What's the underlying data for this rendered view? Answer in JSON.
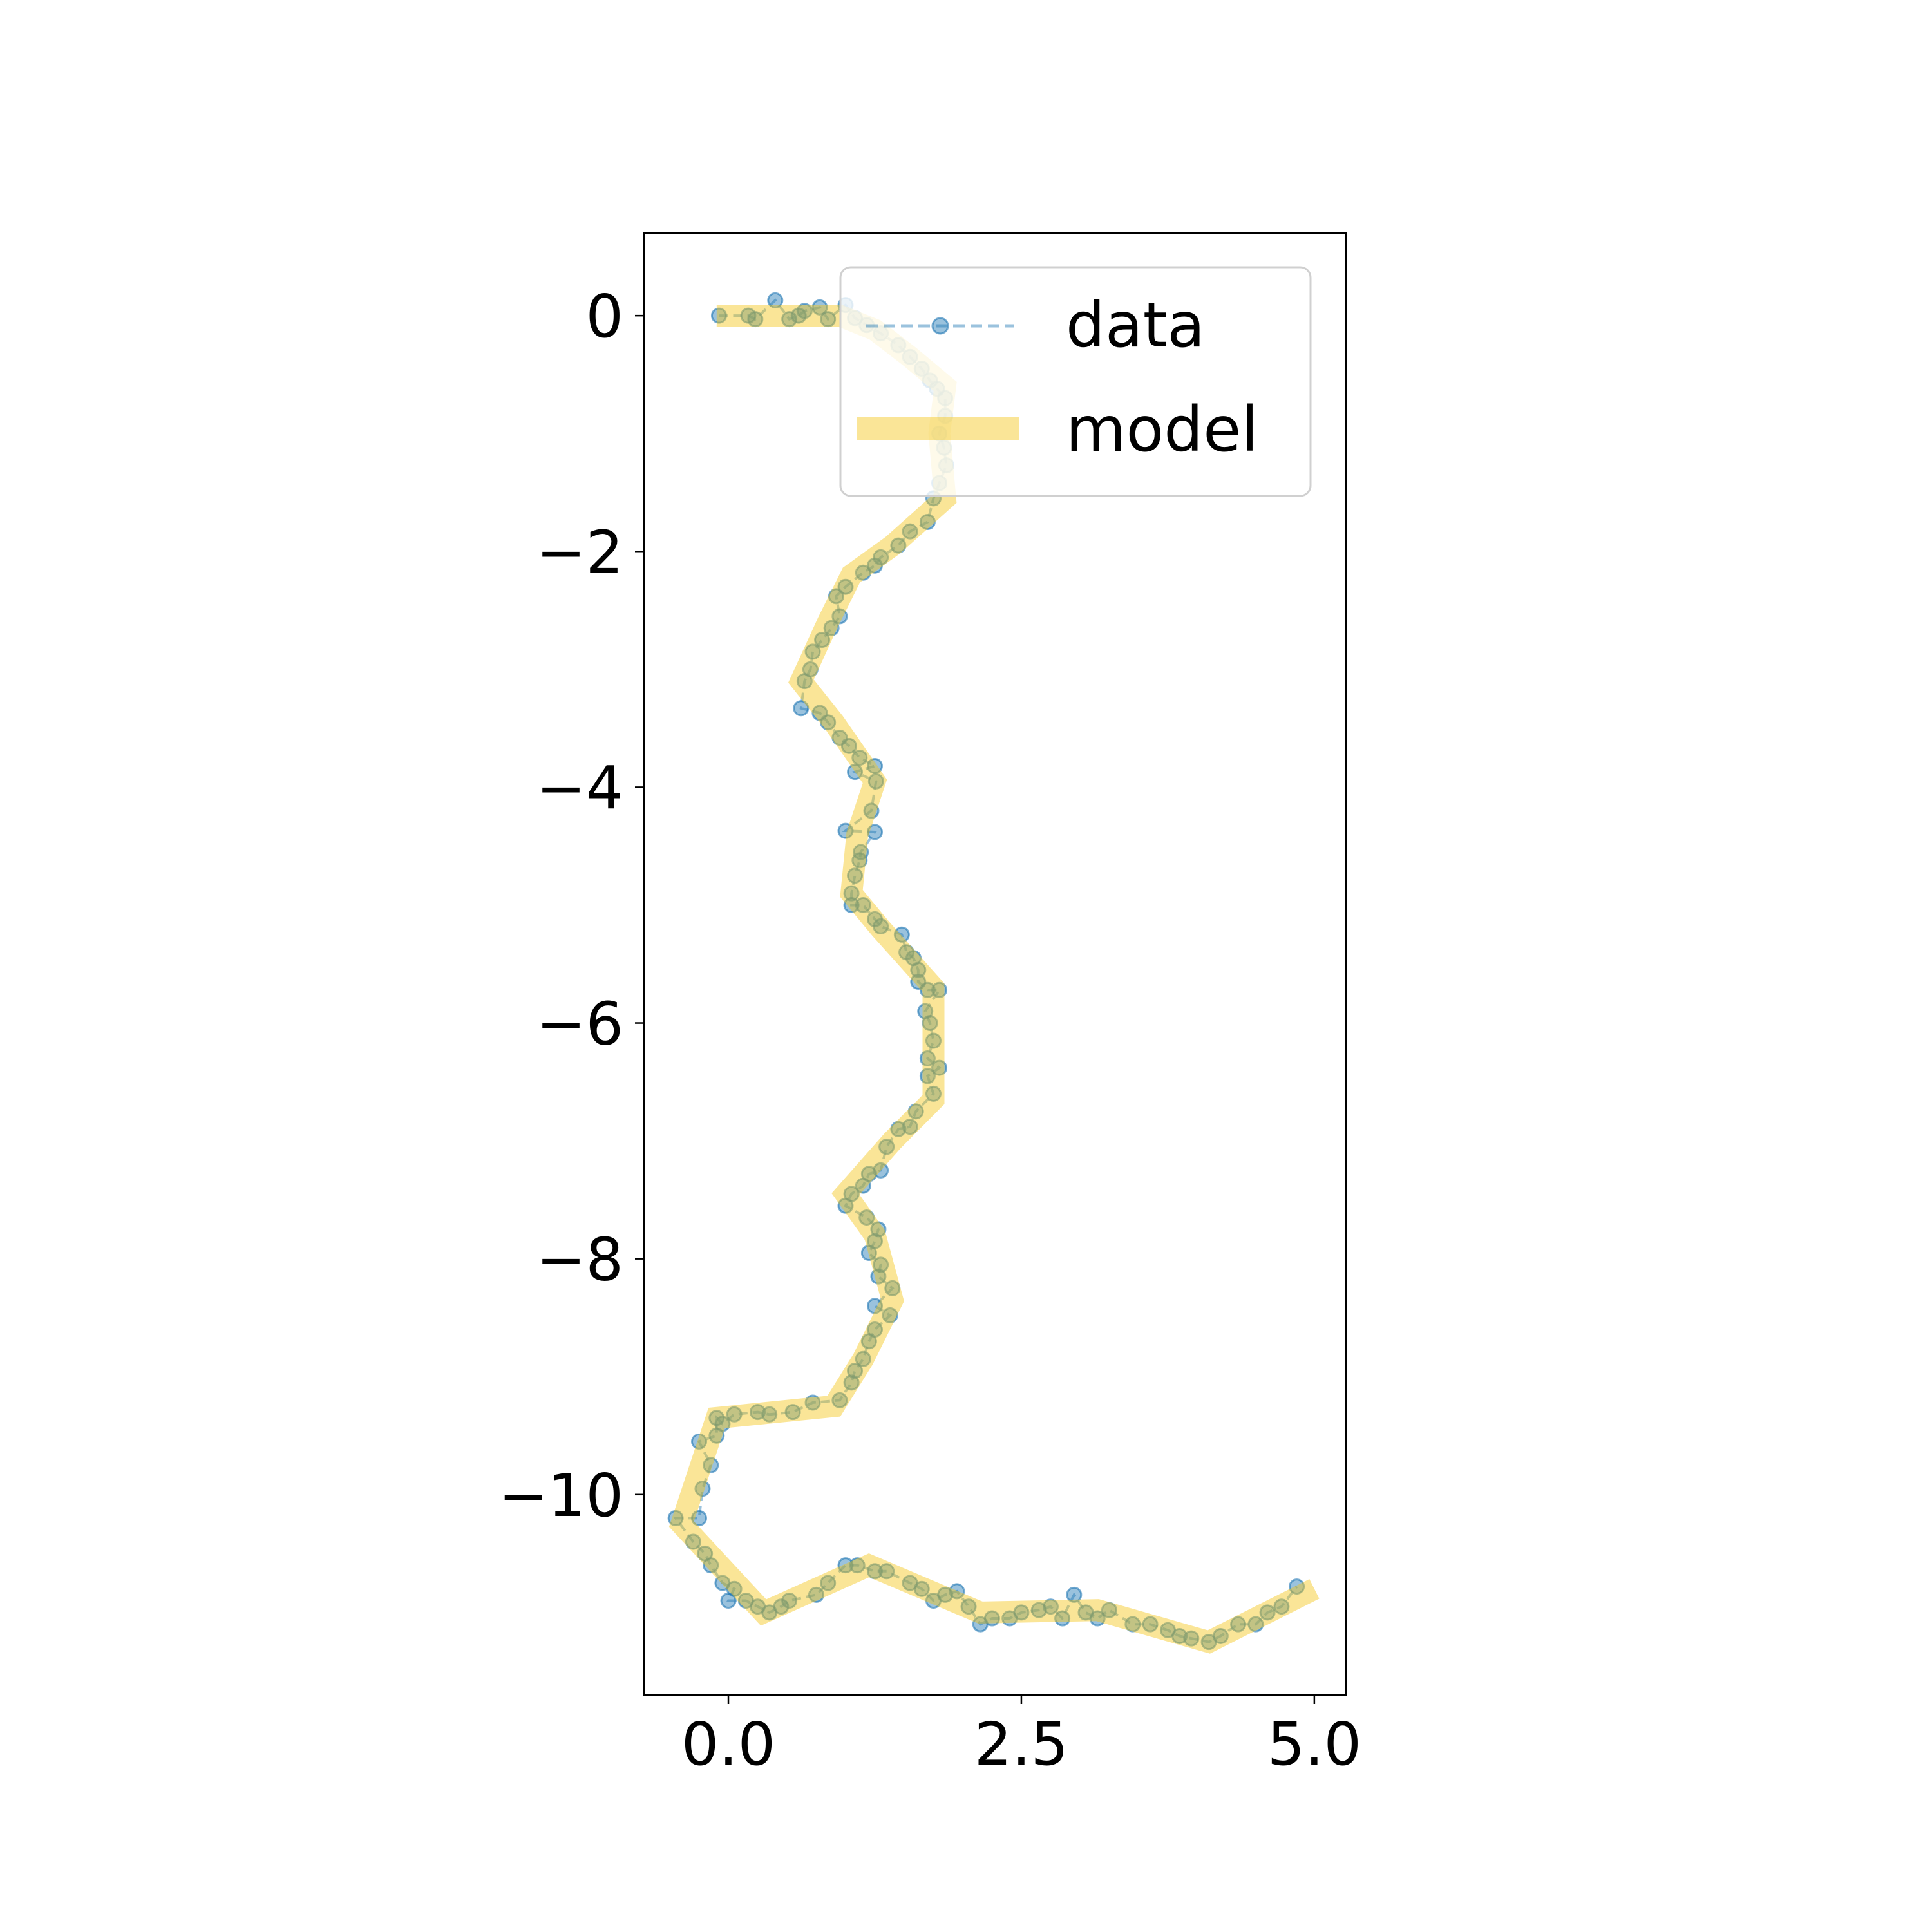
{
  "chart_data": {
    "type": "line",
    "title": "",
    "xlabel": "",
    "ylabel": "",
    "xlim": [
      -0.72,
      5.27
    ],
    "ylim": [
      -11.7,
      0.7
    ],
    "xticks": [
      0.0,
      2.5,
      5.0
    ],
    "xtick_labels": [
      "0.0",
      "2.5",
      "5.0"
    ],
    "yticks": [
      0,
      -2,
      -4,
      -6,
      -8,
      -10
    ],
    "ytick_labels": [
      "0",
      "−2",
      "−4",
      "−6",
      "−8",
      "−10"
    ],
    "grid": false,
    "legend": {
      "position": "top-right",
      "entries": [
        "data",
        "model"
      ]
    },
    "series": [
      {
        "name": "data",
        "style": "dashed line with circle markers",
        "color": "#1f77b4",
        "points": [
          [
            -0.08,
            0.0
          ],
          [
            0.17,
            0.0
          ],
          [
            0.23,
            -0.03
          ],
          [
            0.4,
            0.13
          ],
          [
            0.52,
            -0.03
          ],
          [
            0.6,
            0.0
          ],
          [
            0.65,
            0.04
          ],
          [
            0.78,
            0.07
          ],
          [
            0.85,
            -0.03
          ],
          [
            1.0,
            0.09
          ],
          [
            1.08,
            -0.02
          ],
          [
            1.18,
            -0.08
          ],
          [
            1.3,
            -0.15
          ],
          [
            1.45,
            -0.25
          ],
          [
            1.55,
            -0.35
          ],
          [
            1.65,
            -0.45
          ],
          [
            1.72,
            -0.55
          ],
          [
            1.78,
            -0.62
          ],
          [
            1.85,
            -0.7
          ],
          [
            1.85,
            -0.85
          ],
          [
            1.8,
            -1.0
          ],
          [
            1.84,
            -1.12
          ],
          [
            1.86,
            -1.27
          ],
          [
            1.8,
            -1.42
          ],
          [
            1.75,
            -1.55
          ],
          [
            1.7,
            -1.75
          ],
          [
            1.55,
            -1.83
          ],
          [
            1.45,
            -1.95
          ],
          [
            1.3,
            -2.05
          ],
          [
            1.25,
            -2.12
          ],
          [
            1.15,
            -2.18
          ],
          [
            1.0,
            -2.3
          ],
          [
            0.92,
            -2.38
          ],
          [
            0.95,
            -2.55
          ],
          [
            0.88,
            -2.65
          ],
          [
            0.8,
            -2.75
          ],
          [
            0.72,
            -2.85
          ],
          [
            0.7,
            -3.0
          ],
          [
            0.65,
            -3.1
          ],
          [
            0.62,
            -3.33
          ],
          [
            0.78,
            -3.37
          ],
          [
            0.85,
            -3.45
          ],
          [
            0.95,
            -3.58
          ],
          [
            1.03,
            -3.65
          ],
          [
            1.12,
            -3.75
          ],
          [
            1.25,
            -3.82
          ],
          [
            1.08,
            -3.87
          ],
          [
            1.26,
            -3.95
          ],
          [
            1.22,
            -4.2
          ],
          [
            1.0,
            -4.37
          ],
          [
            1.25,
            -4.38
          ],
          [
            1.13,
            -4.55
          ],
          [
            1.12,
            -4.62
          ],
          [
            1.08,
            -4.75
          ],
          [
            1.05,
            -4.9
          ],
          [
            1.05,
            -5.0
          ],
          [
            1.15,
            -5.0
          ],
          [
            1.25,
            -5.12
          ],
          [
            1.3,
            -5.18
          ],
          [
            1.48,
            -5.25
          ],
          [
            1.52,
            -5.4
          ],
          [
            1.58,
            -5.45
          ],
          [
            1.62,
            -5.55
          ],
          [
            1.62,
            -5.65
          ],
          [
            1.7,
            -5.72
          ],
          [
            1.8,
            -5.72
          ],
          [
            1.68,
            -5.9
          ],
          [
            1.72,
            -6.0
          ],
          [
            1.75,
            -6.15
          ],
          [
            1.7,
            -6.3
          ],
          [
            1.8,
            -6.38
          ],
          [
            1.7,
            -6.45
          ],
          [
            1.75,
            -6.6
          ],
          [
            1.6,
            -6.75
          ],
          [
            1.55,
            -6.88
          ],
          [
            1.45,
            -6.9
          ],
          [
            1.35,
            -7.05
          ],
          [
            1.3,
            -7.25
          ],
          [
            1.2,
            -7.28
          ],
          [
            1.15,
            -7.38
          ],
          [
            1.05,
            -7.45
          ],
          [
            1.0,
            -7.55
          ],
          [
            1.18,
            -7.65
          ],
          [
            1.28,
            -7.75
          ],
          [
            1.25,
            -7.85
          ],
          [
            1.2,
            -7.95
          ],
          [
            1.3,
            -8.05
          ],
          [
            1.28,
            -8.15
          ],
          [
            1.4,
            -8.25
          ],
          [
            1.25,
            -8.4
          ],
          [
            1.38,
            -8.48
          ],
          [
            1.25,
            -8.6
          ],
          [
            1.2,
            -8.7
          ],
          [
            1.15,
            -8.85
          ],
          [
            1.08,
            -8.95
          ],
          [
            1.05,
            -9.05
          ],
          [
            0.95,
            -9.2
          ],
          [
            0.72,
            -9.22
          ],
          [
            0.55,
            -9.3
          ],
          [
            0.35,
            -9.32
          ],
          [
            0.25,
            -9.3
          ],
          [
            0.05,
            -9.32
          ],
          [
            -0.05,
            -9.4
          ],
          [
            -0.1,
            -9.35
          ],
          [
            -0.1,
            -9.5
          ],
          [
            -0.25,
            -9.55
          ],
          [
            -0.15,
            -9.75
          ],
          [
            -0.22,
            -9.95
          ],
          [
            -0.25,
            -10.2
          ],
          [
            -0.45,
            -10.2
          ],
          [
            -0.3,
            -10.4
          ],
          [
            -0.2,
            -10.5
          ],
          [
            -0.15,
            -10.6
          ],
          [
            -0.05,
            -10.75
          ],
          [
            0.05,
            -10.8
          ],
          [
            0.0,
            -10.9
          ],
          [
            0.15,
            -10.9
          ],
          [
            0.25,
            -10.95
          ],
          [
            0.35,
            -11.0
          ],
          [
            0.45,
            -10.95
          ],
          [
            0.52,
            -10.9
          ],
          [
            0.75,
            -10.85
          ],
          [
            0.85,
            -10.75
          ],
          [
            1.0,
            -10.6
          ],
          [
            1.1,
            -10.6
          ],
          [
            1.25,
            -10.65
          ],
          [
            1.35,
            -10.65
          ],
          [
            1.55,
            -10.75
          ],
          [
            1.65,
            -10.8
          ],
          [
            1.75,
            -10.9
          ],
          [
            1.85,
            -10.85
          ],
          [
            1.95,
            -10.82
          ],
          [
            2.05,
            -10.95
          ],
          [
            2.15,
            -11.1
          ],
          [
            2.25,
            -11.05
          ],
          [
            2.4,
            -11.05
          ],
          [
            2.5,
            -11.0
          ],
          [
            2.65,
            -10.98
          ],
          [
            2.75,
            -10.95
          ],
          [
            2.85,
            -11.05
          ],
          [
            2.95,
            -10.85
          ],
          [
            3.05,
            -11.0
          ],
          [
            3.15,
            -11.05
          ],
          [
            3.25,
            -10.98
          ],
          [
            3.45,
            -11.1
          ],
          [
            3.6,
            -11.1
          ],
          [
            3.75,
            -11.15
          ],
          [
            3.85,
            -11.2
          ],
          [
            3.95,
            -11.22
          ],
          [
            4.1,
            -11.25
          ],
          [
            4.2,
            -11.2
          ],
          [
            4.35,
            -11.1
          ],
          [
            4.5,
            -11.1
          ],
          [
            4.6,
            -11.0
          ],
          [
            4.72,
            -10.95
          ],
          [
            4.85,
            -10.78
          ]
        ]
      },
      {
        "name": "model",
        "style": "thick translucent line",
        "color": "#f5c518",
        "points": [
          [
            -0.1,
            0.0
          ],
          [
            0.95,
            0.0
          ],
          [
            1.25,
            -0.12
          ],
          [
            1.55,
            -0.35
          ],
          [
            1.85,
            -0.6
          ],
          [
            1.8,
            -1.0
          ],
          [
            1.85,
            -1.55
          ],
          [
            1.4,
            -1.95
          ],
          [
            1.05,
            -2.2
          ],
          [
            0.85,
            -2.6
          ],
          [
            0.62,
            -3.1
          ],
          [
            0.9,
            -3.45
          ],
          [
            1.25,
            -3.95
          ],
          [
            1.1,
            -4.4
          ],
          [
            1.05,
            -4.9
          ],
          [
            1.3,
            -5.2
          ],
          [
            1.75,
            -5.7
          ],
          [
            1.75,
            -6.65
          ],
          [
            1.4,
            -7.0
          ],
          [
            1.0,
            -7.45
          ],
          [
            1.25,
            -7.8
          ],
          [
            1.4,
            -8.35
          ],
          [
            1.15,
            -8.85
          ],
          [
            0.9,
            -9.25
          ],
          [
            -0.1,
            -9.35
          ],
          [
            -0.4,
            -10.25
          ],
          [
            0.3,
            -11.0
          ],
          [
            1.2,
            -10.6
          ],
          [
            2.15,
            -11.0
          ],
          [
            3.15,
            -10.98
          ],
          [
            4.1,
            -11.25
          ],
          [
            5.0,
            -10.8
          ]
        ]
      }
    ]
  }
}
